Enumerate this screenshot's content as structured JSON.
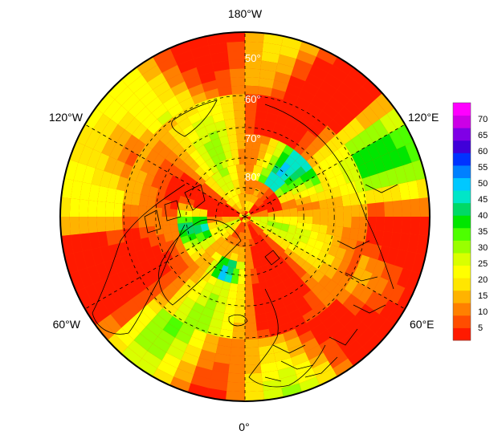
{
  "map": {
    "projection": "north-polar-stereographic",
    "lon_labels": [
      "180°W",
      "120°E",
      "60°E",
      "0°",
      "60°W",
      "120°W"
    ],
    "lat_labels": [
      "50°",
      "60°",
      "70°",
      "80°"
    ],
    "colorbar": {
      "ticks": [
        "70",
        "65",
        "60",
        "55",
        "50",
        "45",
        "40",
        "35",
        "30",
        "25",
        "20",
        "15",
        "10",
        "5"
      ],
      "tick_values": [
        70,
        65,
        60,
        55,
        50,
        45,
        40,
        35,
        30,
        25,
        20,
        15,
        10,
        5
      ],
      "range": [
        1,
        75
      ],
      "colors": [
        "#ff1a00",
        "#ff4d00",
        "#ff8000",
        "#ffb300",
        "#ffe600",
        "#ffff00",
        "#d9ff00",
        "#99ff00",
        "#4dff00",
        "#00e600",
        "#00d966",
        "#00e6c8",
        "#00c8ff",
        "#0080ff",
        "#0033ff",
        "#4000d9",
        "#8000e6",
        "#cc00e6",
        "#ff00ff"
      ]
    }
  }
}
